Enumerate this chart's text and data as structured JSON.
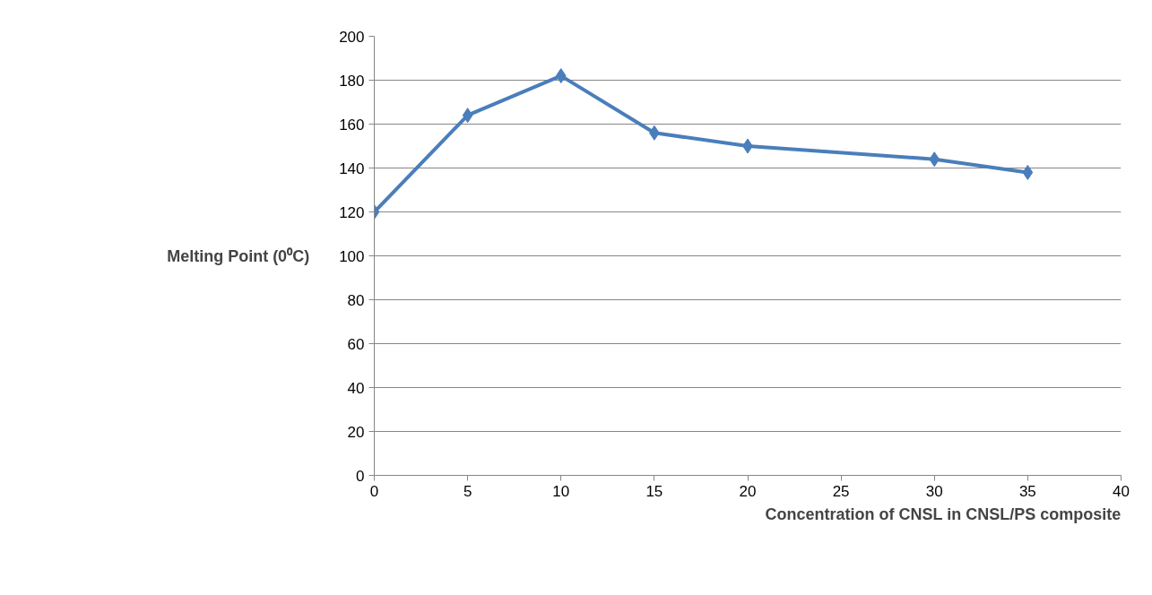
{
  "chart_data": {
    "type": "line",
    "xlabel": "Concentration of CNSL in CNSL/PS composite",
    "ylabel": "Melting Point (0⁰C)",
    "x": [
      0,
      5,
      10,
      15,
      20,
      30,
      35
    ],
    "series": [
      {
        "color": "#4a7ebb",
        "values": [
          120,
          164,
          182,
          156,
          150,
          144,
          138
        ]
      }
    ],
    "xlim": [
      0,
      40
    ],
    "xticks": [
      0,
      5,
      10,
      15,
      20,
      25,
      30,
      35,
      40
    ],
    "ylim": [
      0,
      200
    ],
    "yticks": [
      0,
      20,
      40,
      60,
      80,
      100,
      120,
      140,
      160,
      180,
      200
    ],
    "grid": "y",
    "marker": "diamond",
    "line_style": "solid"
  }
}
